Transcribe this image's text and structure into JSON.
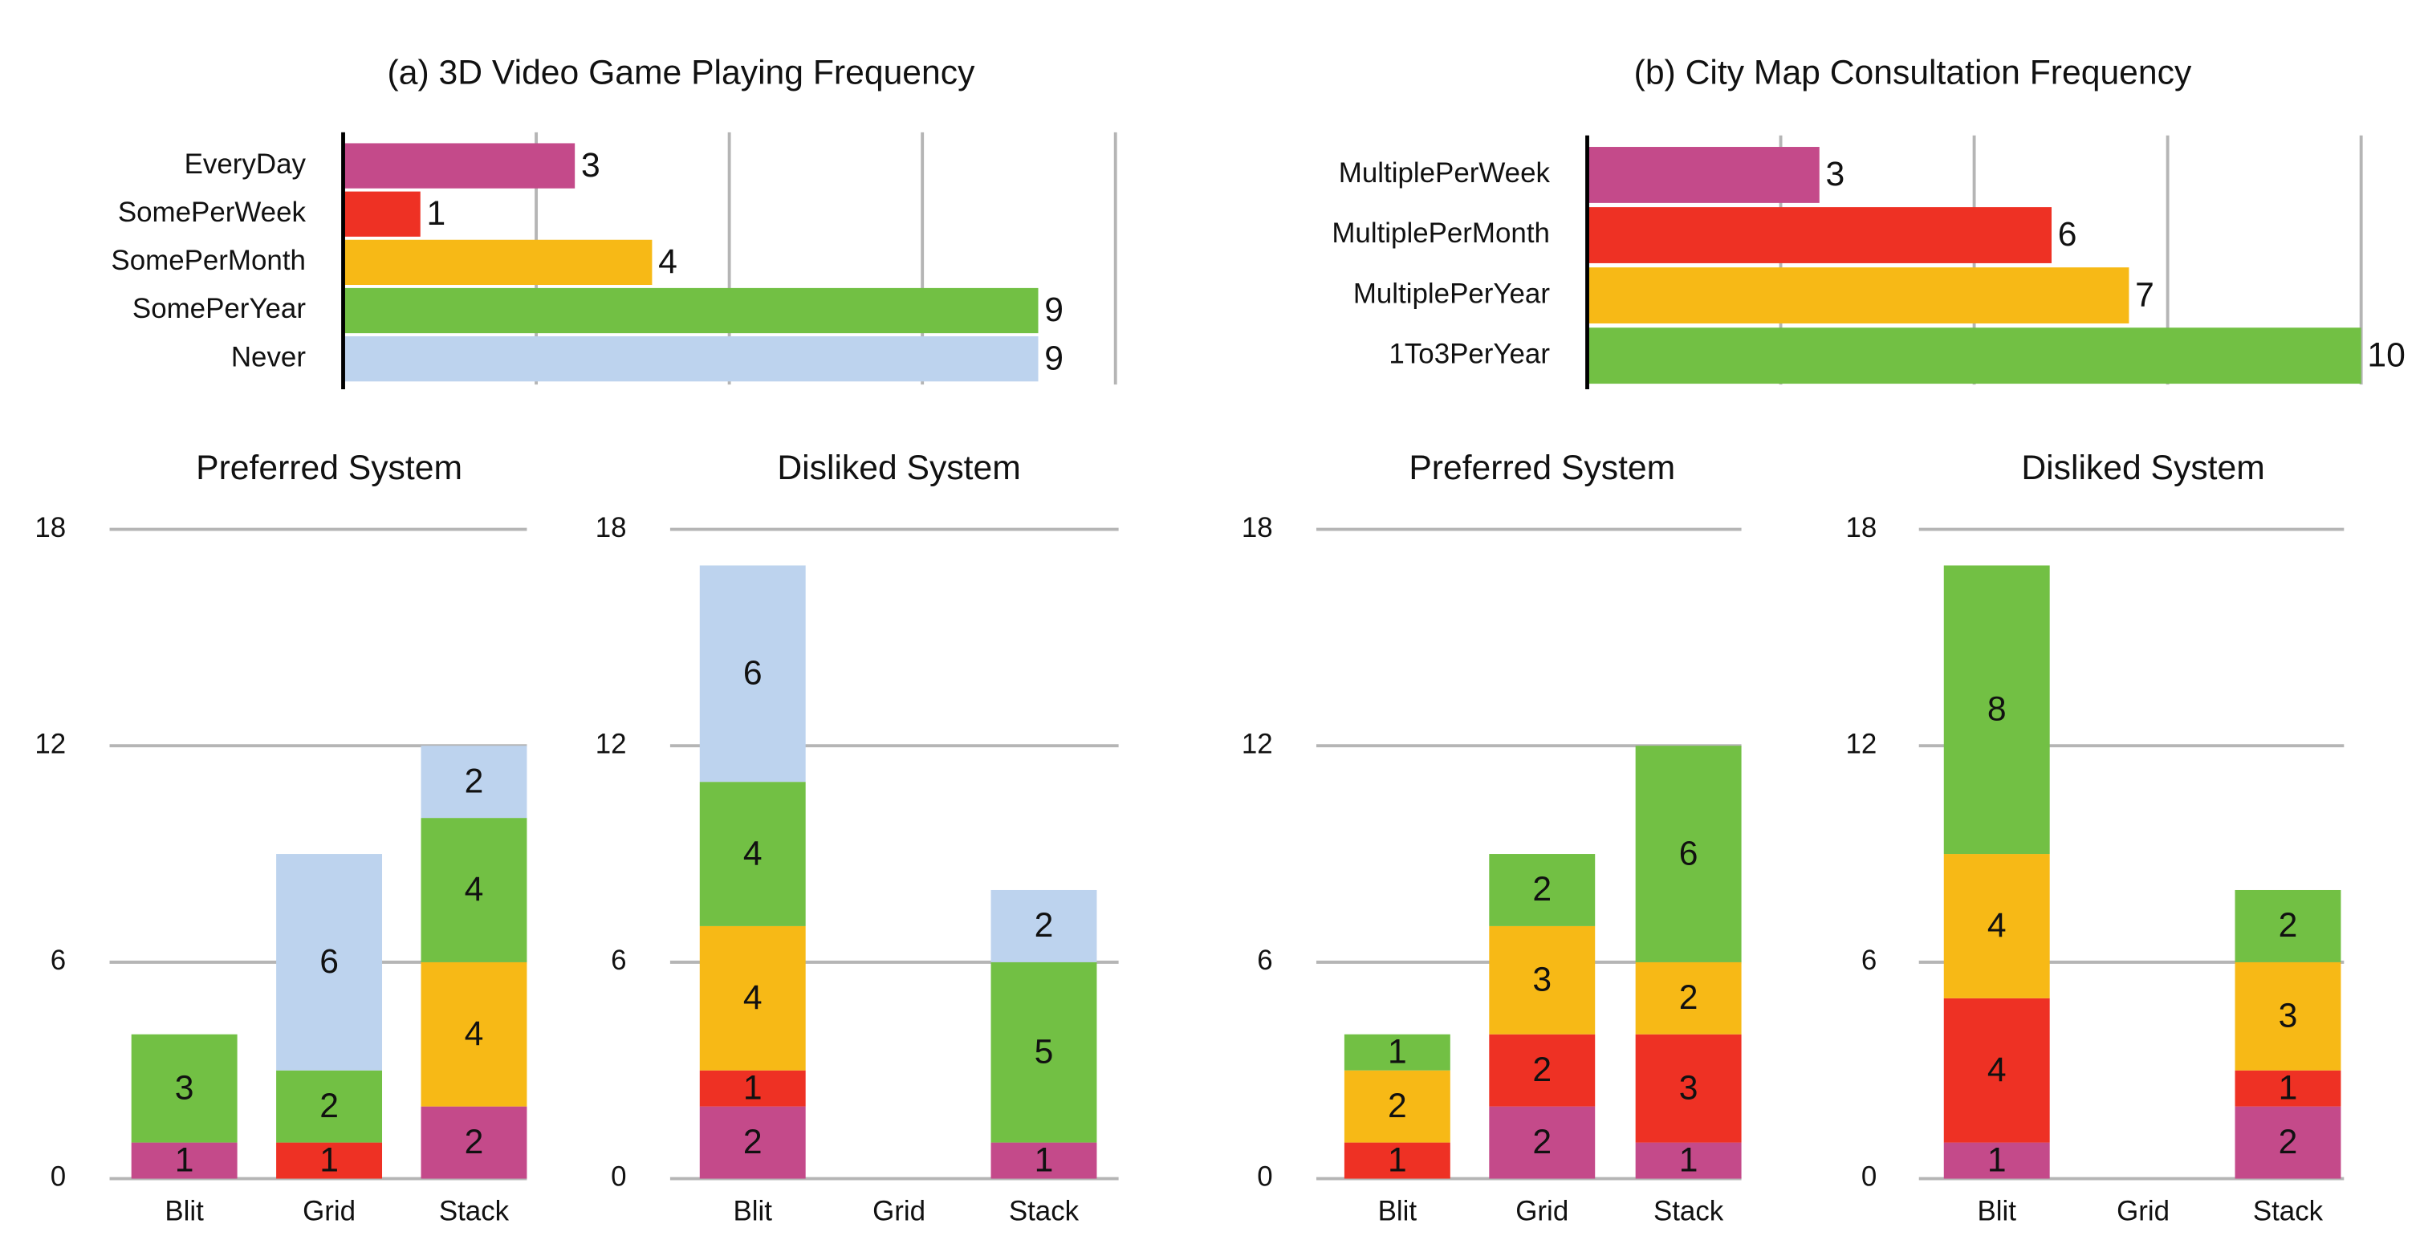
{
  "chart_data": [
    {
      "type": "hbar",
      "title": "(a) 3D Video Game Playing Frequency",
      "categories": [
        "EveryDay",
        "SomePerWeek",
        "SomePerMonth",
        "SomePerYear",
        "Never"
      ],
      "values": [
        3,
        1,
        4,
        9,
        9
      ],
      "colors": [
        "#c44a8a",
        "#ee3124",
        "#f7b916",
        "#72c044",
        "#bdd3ee"
      ],
      "xlim": [
        0,
        10
      ],
      "xticks": [
        0,
        2.5,
        5,
        7.5,
        10
      ],
      "grid": true
    },
    {
      "type": "hbar",
      "title": "(b) City Map Consultation Frequency",
      "categories": [
        "MultiplePerWeek",
        "MultiplePerMonth",
        "MultiplePerYear",
        "1To3PerYear"
      ],
      "values": [
        3,
        6,
        7,
        10
      ],
      "colors": [
        "#c44a8a",
        "#ee3124",
        "#f7b916",
        "#72c044"
      ],
      "xlim": [
        0,
        10
      ],
      "xticks": [
        0,
        2.5,
        5,
        7.5,
        10
      ],
      "grid": true
    },
    {
      "type": "stacked",
      "title": "Preferred System",
      "categories": [
        "Blit",
        "Grid",
        "Stack"
      ],
      "series": [
        {
          "color": "#c44a8a",
          "values": [
            1,
            null,
            2
          ]
        },
        {
          "color": "#ee3124",
          "values": [
            null,
            1,
            null
          ]
        },
        {
          "color": "#f7b916",
          "values": [
            null,
            null,
            4
          ]
        },
        {
          "color": "#72c044",
          "values": [
            3,
            2,
            4
          ]
        },
        {
          "color": "#bdd3ee",
          "values": [
            null,
            6,
            2
          ]
        }
      ],
      "ylim": [
        0,
        18
      ],
      "yticks": [
        0,
        6,
        12,
        18
      ],
      "grid": true
    },
    {
      "type": "stacked",
      "title": "Disliked System",
      "categories": [
        "Blit",
        "Grid",
        "Stack"
      ],
      "series": [
        {
          "color": "#c44a8a",
          "values": [
            2,
            null,
            1
          ]
        },
        {
          "color": "#ee3124",
          "values": [
            1,
            null,
            null
          ]
        },
        {
          "color": "#f7b916",
          "values": [
            4,
            null,
            null
          ]
        },
        {
          "color": "#72c044",
          "values": [
            4,
            null,
            5
          ]
        },
        {
          "color": "#bdd3ee",
          "values": [
            6,
            null,
            2
          ]
        }
      ],
      "ylim": [
        0,
        18
      ],
      "yticks": [
        0,
        6,
        12,
        18
      ],
      "grid": true
    },
    {
      "type": "stacked",
      "title": "Preferred System",
      "categories": [
        "Blit",
        "Grid",
        "Stack"
      ],
      "series": [
        {
          "color": "#c44a8a",
          "values": [
            null,
            2,
            1
          ]
        },
        {
          "color": "#ee3124",
          "values": [
            1,
            2,
            3
          ]
        },
        {
          "color": "#f7b916",
          "values": [
            2,
            3,
            2
          ]
        },
        {
          "color": "#72c044",
          "values": [
            1,
            2,
            6
          ]
        }
      ],
      "ylim": [
        0,
        18
      ],
      "yticks": [
        0,
        6,
        12,
        18
      ],
      "grid": true
    },
    {
      "type": "stacked",
      "title": "Disliked System",
      "categories": [
        "Blit",
        "Grid",
        "Stack"
      ],
      "series": [
        {
          "color": "#c44a8a",
          "values": [
            1,
            null,
            2
          ]
        },
        {
          "color": "#ee3124",
          "values": [
            4,
            null,
            1
          ]
        },
        {
          "color": "#f7b916",
          "values": [
            4,
            null,
            3
          ]
        },
        {
          "color": "#72c044",
          "values": [
            8,
            null,
            2
          ]
        }
      ],
      "ylim": [
        0,
        18
      ],
      "yticks": [
        0,
        6,
        12,
        18
      ],
      "grid": true
    }
  ]
}
